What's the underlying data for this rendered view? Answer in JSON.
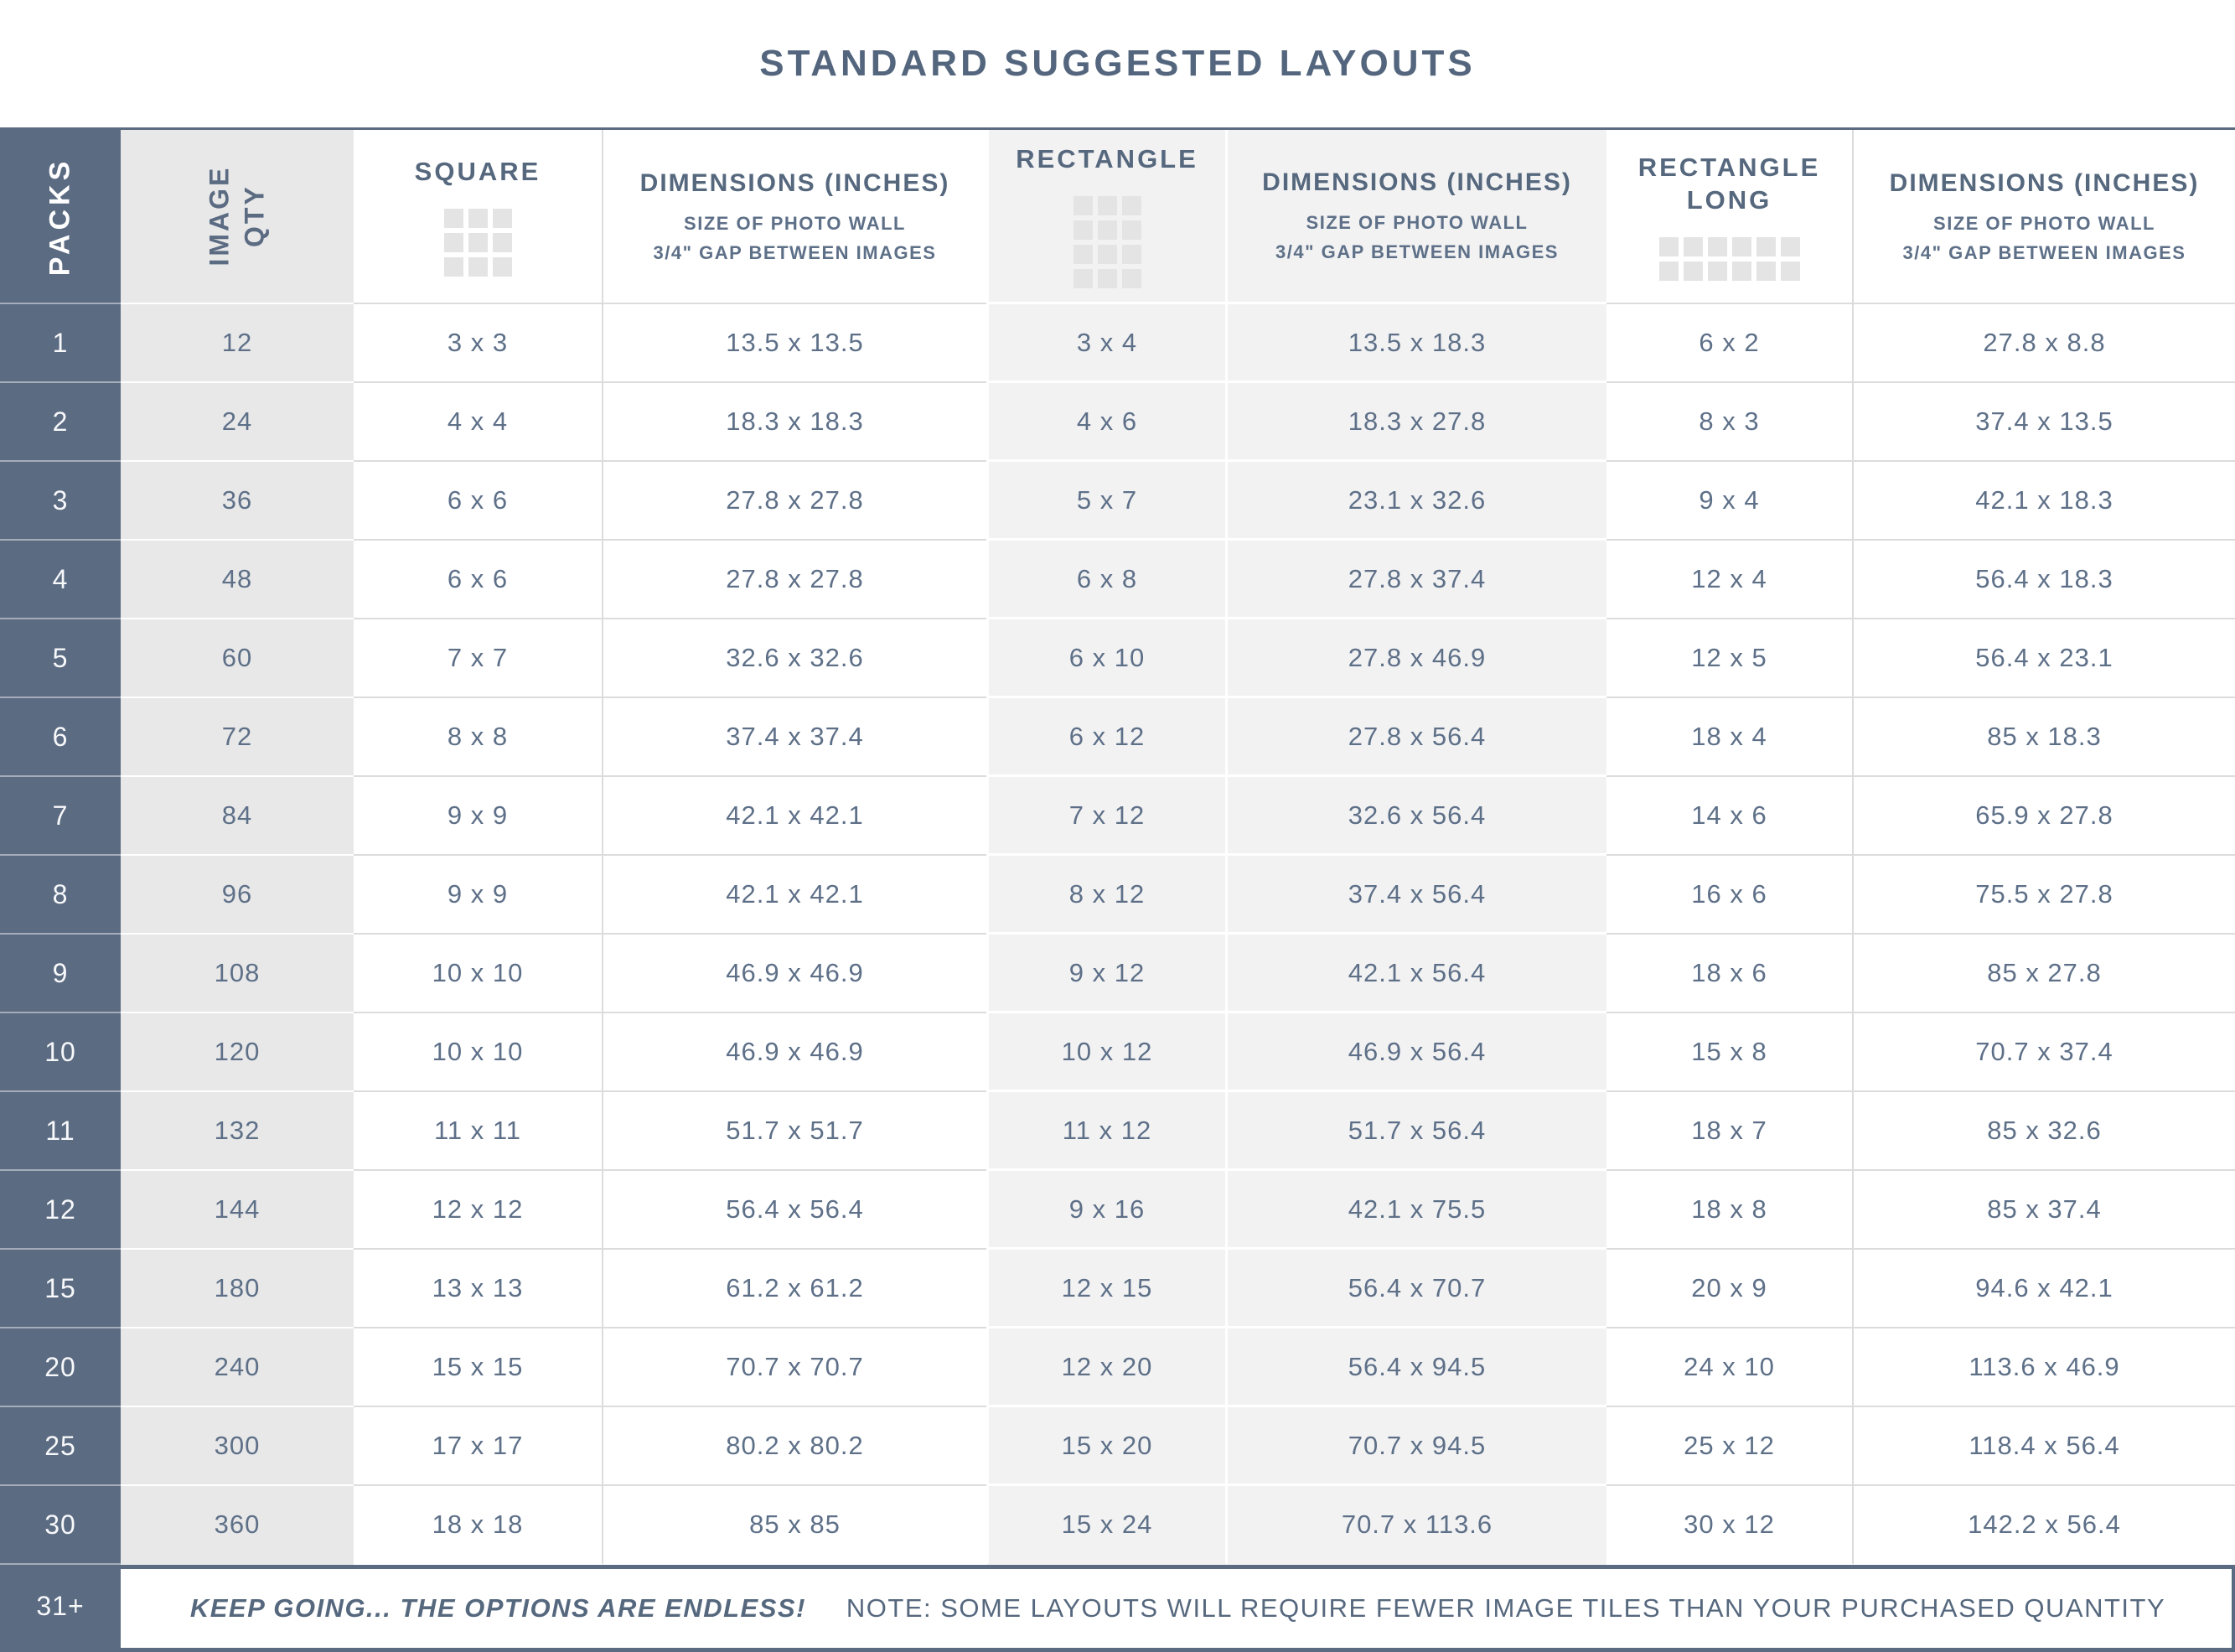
{
  "title": "STANDARD SUGGESTED LAYOUTS",
  "colors": {
    "slate": "#5b6b82",
    "header_text": "#56687e",
    "data_text": "#5e7088",
    "qty_column_bg": "#e8e8e8",
    "shaded_column_bg": "#f2f2f3",
    "icon_gray": "#e4e4e5"
  },
  "header": {
    "packs": "PACKS",
    "image_qty": "IMAGE\nQTY",
    "square": "SQUARE",
    "rectangle": "RECTANGLE",
    "rectangle_long": "RECTANGLE\nLONG",
    "square_icon": "3x3",
    "rectangle_icon": "3x4",
    "rectangle_long_icon": "6x2",
    "dimensions_title": "DIMENSIONS (INCHES)",
    "dimensions_sub1": "SIZE OF PHOTO WALL",
    "dimensions_sub2": "3/4\" GAP BETWEEN IMAGES"
  },
  "table": {
    "rows": [
      {
        "packs": "1",
        "qty": "12",
        "square": "3 x 3",
        "square_dim": "13.5 x 13.5",
        "rect": "3 x 4",
        "rect_dim": "13.5 x 18.3",
        "rect_long": "6 x 2",
        "rect_long_dim": "27.8 x 8.8"
      },
      {
        "packs": "2",
        "qty": "24",
        "square": "4 x 4",
        "square_dim": "18.3 x 18.3",
        "rect": "4 x 6",
        "rect_dim": "18.3 x 27.8",
        "rect_long": "8 x 3",
        "rect_long_dim": "37.4 x 13.5"
      },
      {
        "packs": "3",
        "qty": "36",
        "square": "6 x 6",
        "square_dim": "27.8 x 27.8",
        "rect": "5 x 7",
        "rect_dim": "23.1 x 32.6",
        "rect_long": "9 x 4",
        "rect_long_dim": "42.1 x 18.3"
      },
      {
        "packs": "4",
        "qty": "48",
        "square": "6 x 6",
        "square_dim": "27.8 x 27.8",
        "rect": "6 x 8",
        "rect_dim": "27.8 x 37.4",
        "rect_long": "12 x 4",
        "rect_long_dim": "56.4 x 18.3"
      },
      {
        "packs": "5",
        "qty": "60",
        "square": "7 x 7",
        "square_dim": "32.6 x 32.6",
        "rect": "6 x 10",
        "rect_dim": "27.8 x 46.9",
        "rect_long": "12 x 5",
        "rect_long_dim": "56.4 x 23.1"
      },
      {
        "packs": "6",
        "qty": "72",
        "square": "8 x 8",
        "square_dim": "37.4 x 37.4",
        "rect": "6 x 12",
        "rect_dim": "27.8 x 56.4",
        "rect_long": "18 x 4",
        "rect_long_dim": "85 x 18.3"
      },
      {
        "packs": "7",
        "qty": "84",
        "square": "9 x 9",
        "square_dim": "42.1 x 42.1",
        "rect": "7 x 12",
        "rect_dim": "32.6 x 56.4",
        "rect_long": "14 x 6",
        "rect_long_dim": "65.9 x 27.8"
      },
      {
        "packs": "8",
        "qty": "96",
        "square": "9 x 9",
        "square_dim": "42.1 x 42.1",
        "rect": "8 x 12",
        "rect_dim": "37.4 x 56.4",
        "rect_long": "16 x 6",
        "rect_long_dim": "75.5 x 27.8"
      },
      {
        "packs": "9",
        "qty": "108",
        "square": "10 x 10",
        "square_dim": "46.9 x 46.9",
        "rect": "9 x 12",
        "rect_dim": "42.1 x 56.4",
        "rect_long": "18 x 6",
        "rect_long_dim": "85 x 27.8"
      },
      {
        "packs": "10",
        "qty": "120",
        "square": "10 x 10",
        "square_dim": "46.9 x 46.9",
        "rect": "10 x 12",
        "rect_dim": "46.9 x 56.4",
        "rect_long": "15 x 8",
        "rect_long_dim": "70.7 x 37.4"
      },
      {
        "packs": "11",
        "qty": "132",
        "square": "11 x 11",
        "square_dim": "51.7 x 51.7",
        "rect": "11 x 12",
        "rect_dim": "51.7 x 56.4",
        "rect_long": "18 x 7",
        "rect_long_dim": "85 x 32.6"
      },
      {
        "packs": "12",
        "qty": "144",
        "square": "12 x 12",
        "square_dim": "56.4 x 56.4",
        "rect": "9 x 16",
        "rect_dim": "42.1 x 75.5",
        "rect_long": "18 x 8",
        "rect_long_dim": "85 x 37.4"
      },
      {
        "packs": "15",
        "qty": "180",
        "square": "13 x 13",
        "square_dim": "61.2 x 61.2",
        "rect": "12 x 15",
        "rect_dim": "56.4 x 70.7",
        "rect_long": "20 x 9",
        "rect_long_dim": "94.6 x 42.1"
      },
      {
        "packs": "20",
        "qty": "240",
        "square": "15 x 15",
        "square_dim": "70.7 x 70.7",
        "rect": "12 x 20",
        "rect_dim": "56.4 x 94.5",
        "rect_long": "24 x 10",
        "rect_long_dim": "113.6 x 46.9"
      },
      {
        "packs": "25",
        "qty": "300",
        "square": "17 x 17",
        "square_dim": "80.2 x 80.2",
        "rect": "15 x 20",
        "rect_dim": "70.7 x 94.5",
        "rect_long": "25 x 12",
        "rect_long_dim": "118.4 x 56.4"
      },
      {
        "packs": "30",
        "qty": "360",
        "square": "18 x 18",
        "square_dim": "85 x 85",
        "rect": "15 x 24",
        "rect_dim": "70.7 x 113.6",
        "rect_long": "30 x 12",
        "rect_long_dim": "142.2 x 56.4"
      }
    ]
  },
  "footer": {
    "packs": "31+",
    "headline": "KEEP GOING... THE OPTIONS ARE ENDLESS!",
    "note": "NOTE: SOME LAYOUTS WILL REQUIRE FEWER IMAGE TILES THAN YOUR PURCHASED QUANTITY"
  }
}
